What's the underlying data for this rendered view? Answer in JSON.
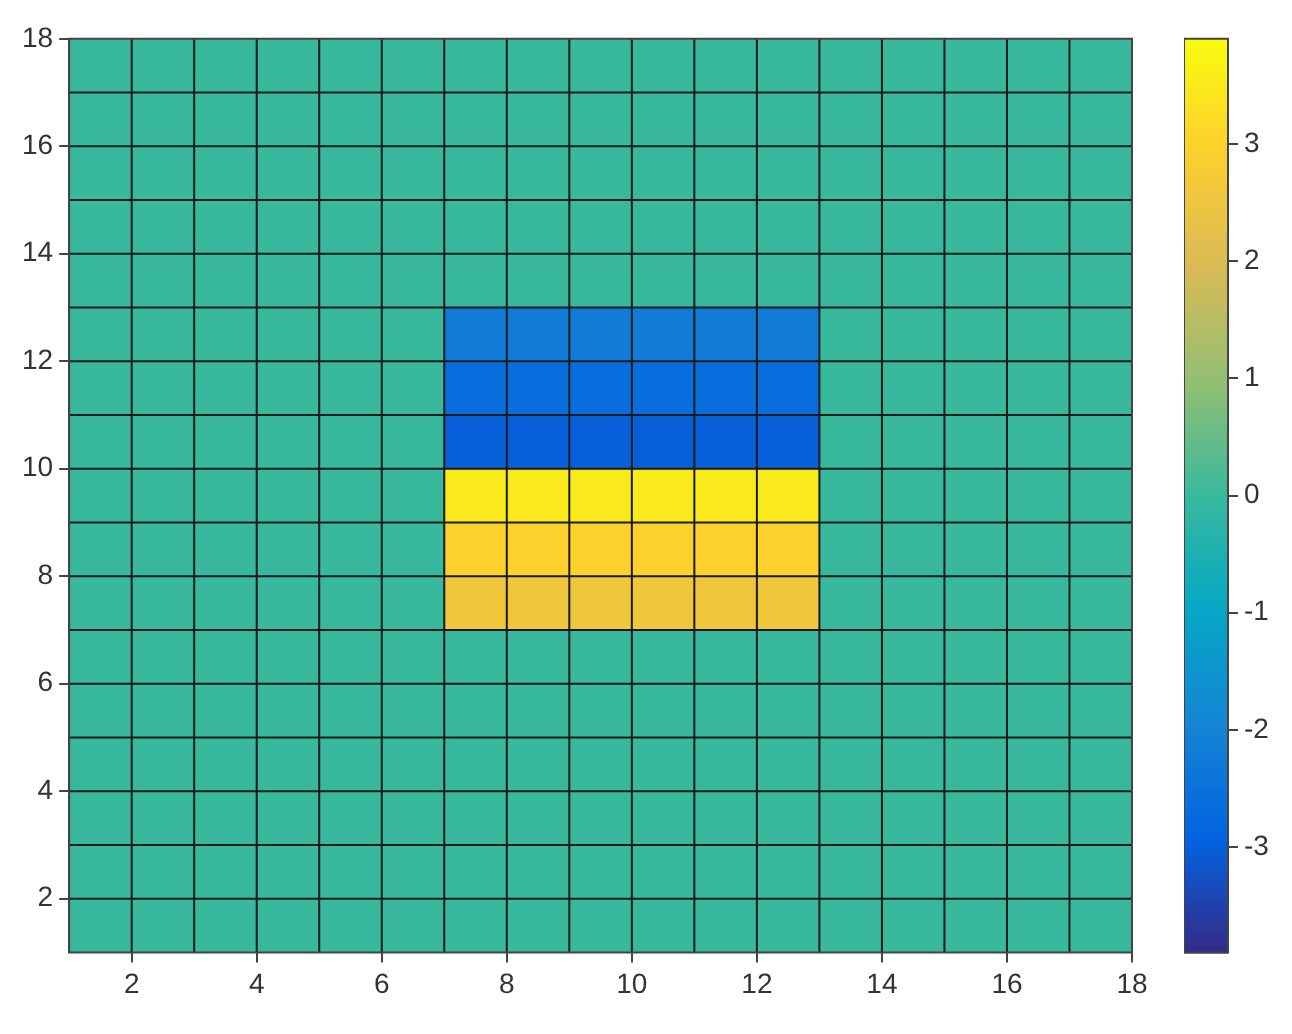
{
  "chart_data": {
    "type": "heatmap",
    "xlim": [
      1,
      18
    ],
    "xticks": [
      2,
      4,
      6,
      8,
      10,
      12,
      14,
      16,
      18
    ],
    "ylim": [
      1,
      18
    ],
    "yticks": [
      2,
      4,
      6,
      8,
      10,
      12,
      14,
      16,
      18
    ],
    "clim": [
      -3.9,
      3.9
    ],
    "cticks": [
      -3,
      -2,
      -1,
      0,
      1,
      2,
      3
    ],
    "grid": true,
    "cells": [
      [
        0,
        0,
        0,
        0,
        0,
        0,
        0,
        0,
        0,
        0,
        0,
        0,
        0,
        0,
        0,
        0,
        0
      ],
      [
        0,
        0,
        0,
        0,
        0,
        0,
        0,
        0,
        0,
        0,
        0,
        0,
        0,
        0,
        0,
        0,
        0
      ],
      [
        0,
        0,
        0,
        0,
        0,
        0,
        0,
        0,
        0,
        0,
        0,
        0,
        0,
        0,
        0,
        0,
        0
      ],
      [
        0,
        0,
        0,
        0,
        0,
        0,
        0,
        0,
        0,
        0,
        0,
        0,
        0,
        0,
        0,
        0,
        0
      ],
      [
        0,
        0,
        0,
        0,
        0,
        0,
        0,
        0,
        0,
        0,
        0,
        0,
        0,
        0,
        0,
        0,
        0
      ],
      [
        0,
        0,
        0,
        0,
        0,
        0,
        -2.2,
        -2.2,
        -2.2,
        -2.2,
        -2.2,
        -2.2,
        0,
        0,
        0,
        0,
        0
      ],
      [
        0,
        0,
        0,
        0,
        0,
        0,
        -2.6,
        -2.6,
        -2.6,
        -2.6,
        -2.6,
        -2.6,
        0,
        0,
        0,
        0,
        0
      ],
      [
        0,
        0,
        0,
        0,
        0,
        0,
        -3.0,
        -3.0,
        -3.0,
        -3.0,
        -3.0,
        -3.0,
        0,
        0,
        0,
        0,
        0
      ],
      [
        0,
        0,
        0,
        0,
        0,
        0,
        3.5,
        3.5,
        3.5,
        3.5,
        3.5,
        3.5,
        0,
        0,
        0,
        0,
        0
      ],
      [
        0,
        0,
        0,
        0,
        0,
        0,
        3.0,
        3.0,
        3.0,
        3.0,
        3.0,
        3.0,
        0,
        0,
        0,
        0,
        0
      ],
      [
        0,
        0,
        0,
        0,
        0,
        0,
        2.6,
        2.6,
        2.6,
        2.6,
        2.6,
        2.6,
        0,
        0,
        0,
        0,
        0
      ],
      [
        0,
        0,
        0,
        0,
        0,
        0,
        0,
        0,
        0,
        0,
        0,
        0,
        0,
        0,
        0,
        0,
        0
      ],
      [
        0,
        0,
        0,
        0,
        0,
        0,
        0,
        0,
        0,
        0,
        0,
        0,
        0,
        0,
        0,
        0,
        0
      ],
      [
        0,
        0,
        0,
        0,
        0,
        0,
        0,
        0,
        0,
        0,
        0,
        0,
        0,
        0,
        0,
        0,
        0
      ],
      [
        0,
        0,
        0,
        0,
        0,
        0,
        0,
        0,
        0,
        0,
        0,
        0,
        0,
        0,
        0,
        0,
        0
      ],
      [
        0,
        0,
        0,
        0,
        0,
        0,
        0,
        0,
        0,
        0,
        0,
        0,
        0,
        0,
        0,
        0,
        0
      ],
      [
        0,
        0,
        0,
        0,
        0,
        0,
        0,
        0,
        0,
        0,
        0,
        0,
        0,
        0,
        0,
        0,
        0
      ]
    ]
  }
}
